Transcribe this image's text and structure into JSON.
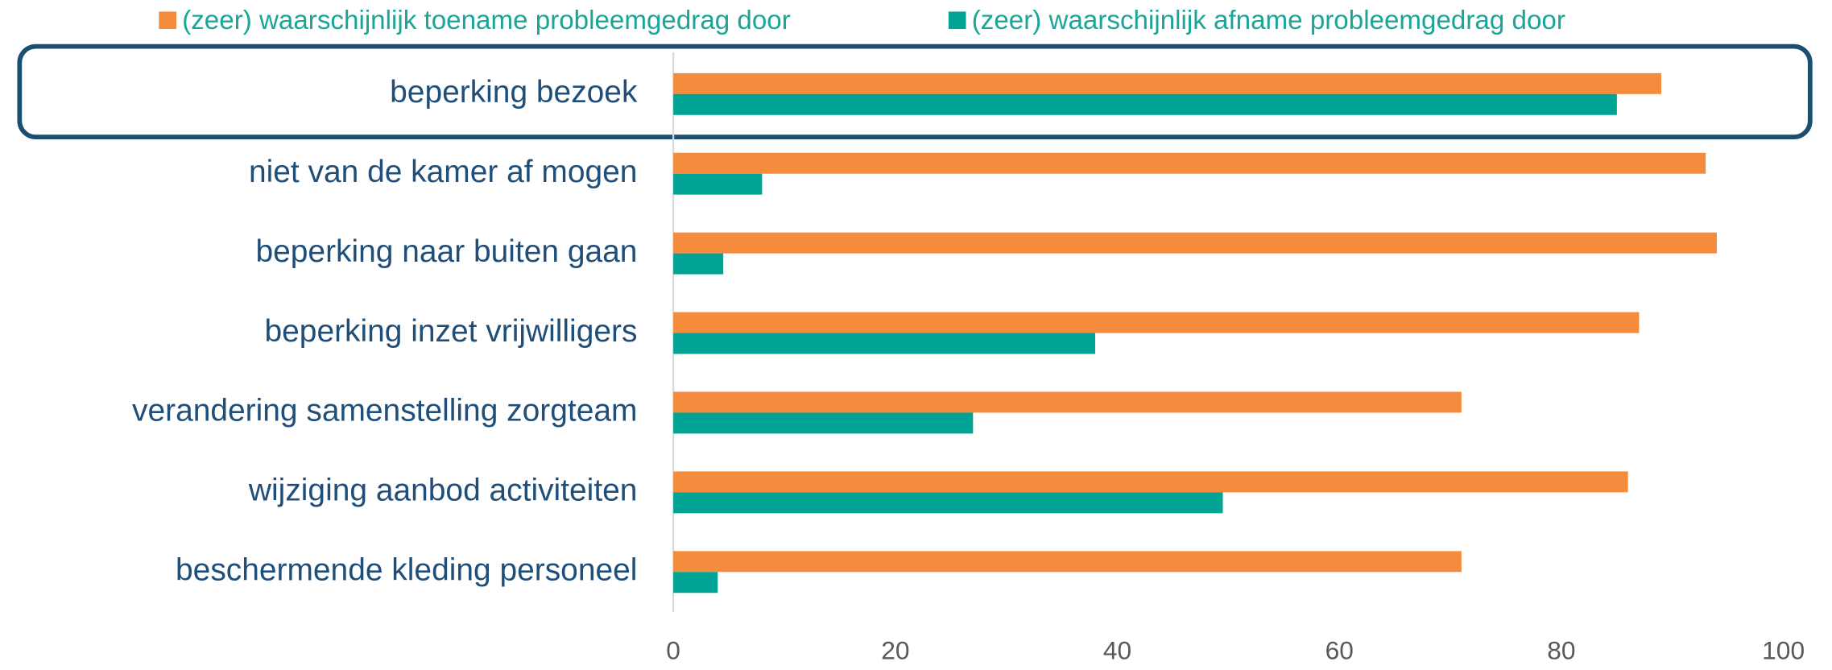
{
  "chart_data": {
    "type": "barh",
    "categories": [
      "beperking bezoek",
      "niet van de kamer af mogen",
      "beperking naar buiten gaan",
      "beperking inzet vrijwilligers",
      "verandering samenstelling zorgteam",
      "wijziging aanbod activiteiten",
      "beschermende kleding personeel"
    ],
    "series": [
      {
        "name": "(zeer) waarschijnlijk toename probleemgedrag door",
        "color": "#f58b3c",
        "values": [
          89,
          93,
          94,
          87,
          71,
          86,
          71
        ]
      },
      {
        "name": "(zeer) waarschijnlijk afname probleemgedrag door",
        "color": "#00a394",
        "values": [
          85,
          8,
          4.5,
          38,
          27,
          49.5,
          4
        ]
      }
    ],
    "xlim": [
      0,
      100
    ],
    "xticks": [
      0,
      20,
      40,
      60,
      80,
      100
    ],
    "legend": "top"
  }
}
